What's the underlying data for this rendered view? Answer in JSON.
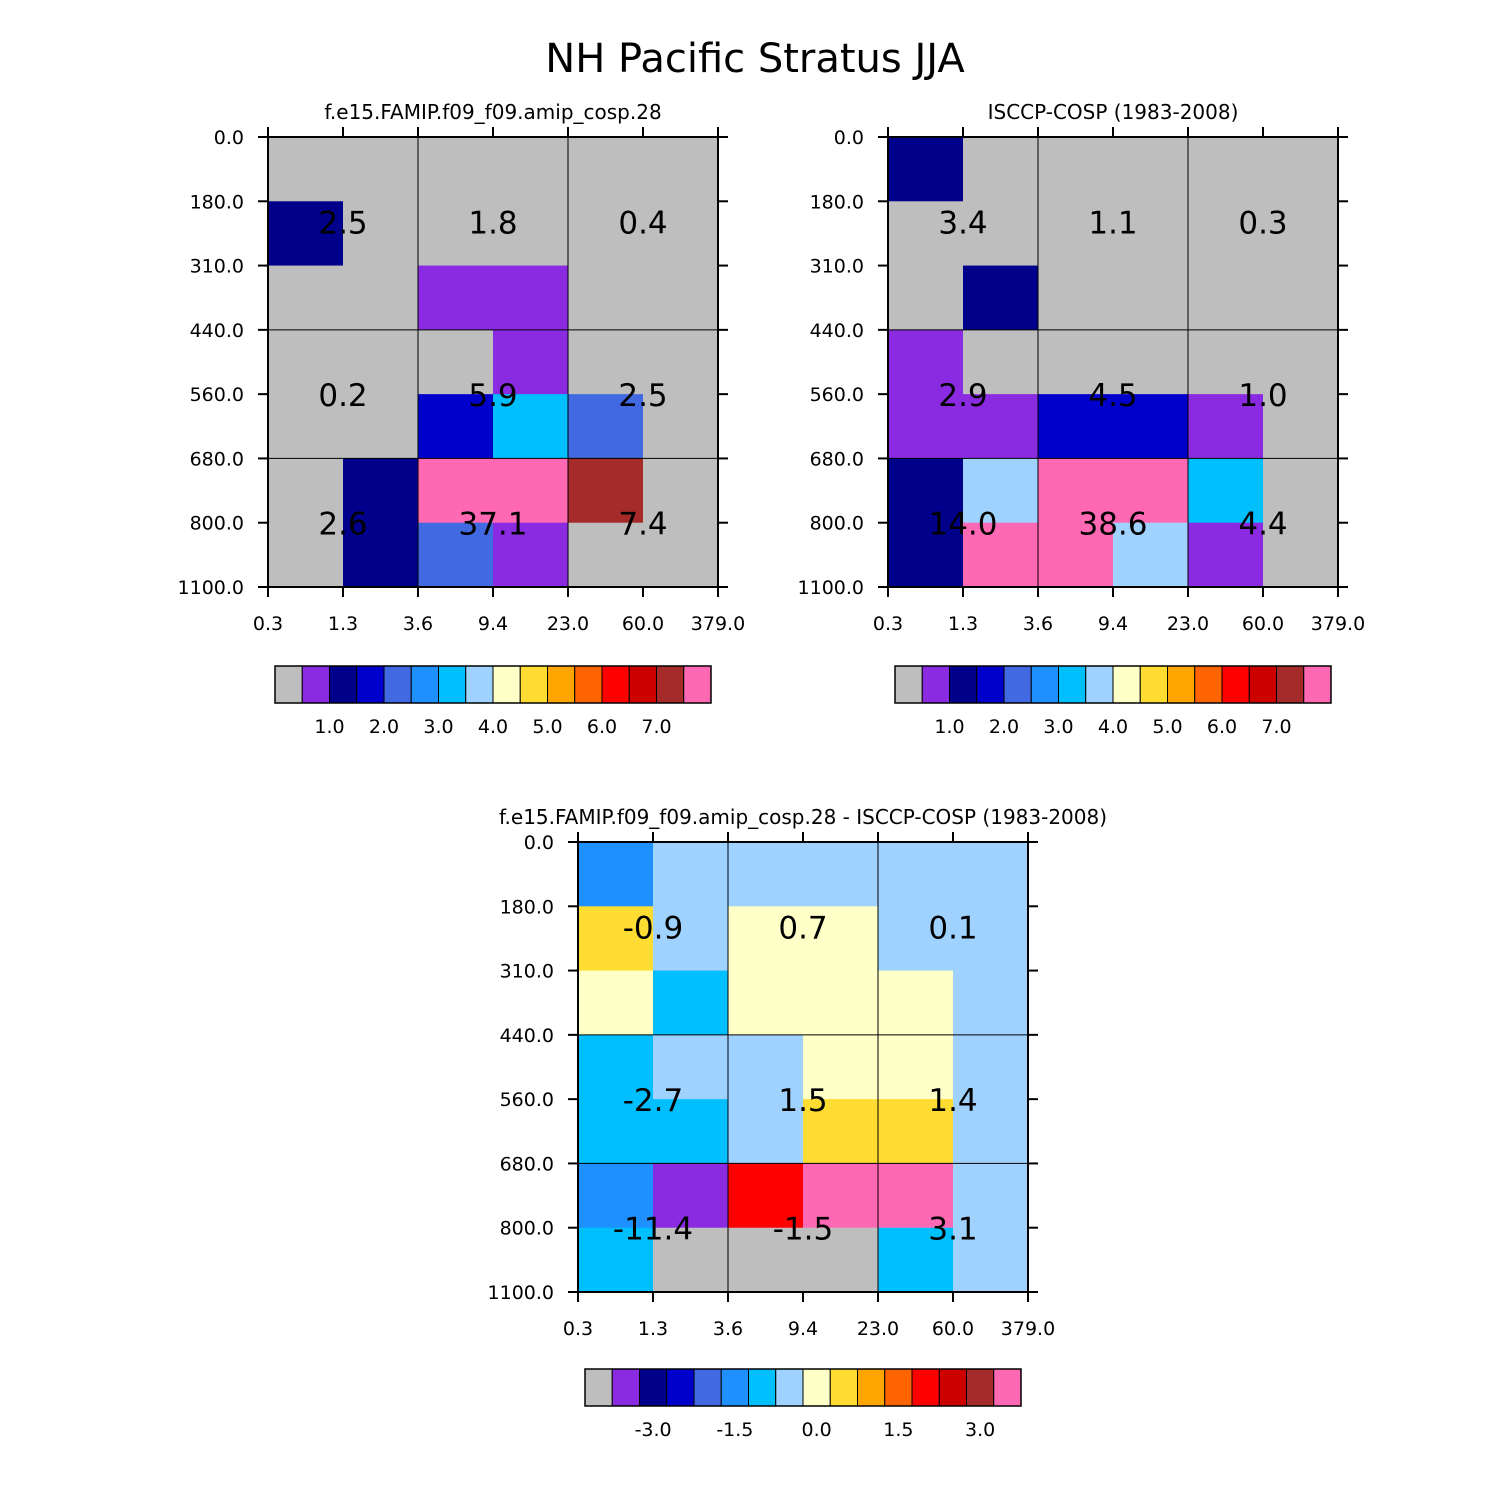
{
  "figure": {
    "title": "NH Pacific Stratus JJA"
  },
  "chart_data": [
    {
      "type": "heatmap",
      "title": "f.e15.FAMIP.f09_f09.amip_cosp.28",
      "x_ticks": [
        "0.3",
        "1.3",
        "3.6",
        "9.4",
        "23.0",
        "60.0",
        "379.0"
      ],
      "y_ticks": [
        "0.0",
        "180.0",
        "310.0",
        "440.0",
        "560.0",
        "680.0",
        "800.0",
        "1100.0"
      ],
      "cell_classes": [
        [
          0,
          0,
          0,
          0,
          0,
          0
        ],
        [
          2,
          0,
          0,
          0,
          0,
          0
        ],
        [
          0,
          0,
          1,
          1,
          0,
          0
        ],
        [
          0,
          0,
          0,
          1,
          0,
          0
        ],
        [
          0,
          0,
          3,
          6,
          4,
          0
        ],
        [
          0,
          2,
          15,
          15,
          14,
          0
        ],
        [
          0,
          2,
          4,
          1,
          0,
          0
        ]
      ],
      "box_values": [
        [
          "2.5",
          "1.8",
          "0.4"
        ],
        [
          "0.2",
          "5.9",
          "2.5"
        ],
        [
          "2.6",
          "37.1",
          "7.4"
        ]
      ],
      "colorbar": {
        "labels": [
          "1.0",
          "2.0",
          "3.0",
          "4.0",
          "5.0",
          "6.0",
          "7.0"
        ],
        "label_after_box": [
          1,
          3,
          5,
          7,
          9,
          11,
          13
        ]
      }
    },
    {
      "type": "heatmap",
      "title": "ISCCP-COSP (1983-2008)",
      "x_ticks": [
        "0.3",
        "1.3",
        "3.6",
        "9.4",
        "23.0",
        "60.0",
        "379.0"
      ],
      "y_ticks": [
        "0.0",
        "180.0",
        "310.0",
        "440.0",
        "560.0",
        "680.0",
        "800.0",
        "1100.0"
      ],
      "cell_classes": [
        [
          2,
          0,
          0,
          0,
          0,
          0
        ],
        [
          0,
          0,
          0,
          0,
          0,
          0
        ],
        [
          0,
          2,
          0,
          0,
          0,
          0
        ],
        [
          1,
          0,
          0,
          0,
          0,
          0
        ],
        [
          1,
          1,
          3,
          3,
          1,
          0
        ],
        [
          2,
          7,
          15,
          15,
          6,
          0
        ],
        [
          2,
          15,
          15,
          7,
          1,
          0
        ]
      ],
      "box_values": [
        [
          "3.4",
          "1.1",
          "0.3"
        ],
        [
          "2.9",
          "4.5",
          "1.0"
        ],
        [
          "14.0",
          "38.6",
          "4.4"
        ]
      ],
      "colorbar": {
        "labels": [
          "1.0",
          "2.0",
          "3.0",
          "4.0",
          "5.0",
          "6.0",
          "7.0"
        ],
        "label_after_box": [
          1,
          3,
          5,
          7,
          9,
          11,
          13
        ]
      }
    },
    {
      "type": "heatmap",
      "title": "f.e15.FAMIP.f09_f09.amip_cosp.28 - ISCCP-COSP (1983-2008)",
      "x_ticks": [
        "0.3",
        "1.3",
        "3.6",
        "9.4",
        "23.0",
        "60.0",
        "379.0"
      ],
      "y_ticks": [
        "0.0",
        "180.0",
        "310.0",
        "440.0",
        "560.0",
        "680.0",
        "800.0",
        "1100.0"
      ],
      "cell_classes": [
        [
          5,
          7,
          7,
          7,
          7,
          7
        ],
        [
          9,
          7,
          8,
          8,
          7,
          7
        ],
        [
          8,
          6,
          8,
          8,
          8,
          7
        ],
        [
          6,
          7,
          7,
          8,
          8,
          7
        ],
        [
          6,
          6,
          7,
          9,
          9,
          7
        ],
        [
          5,
          1,
          12,
          15,
          15,
          7
        ],
        [
          6,
          0,
          0,
          0,
          6,
          7
        ]
      ],
      "box_values": [
        [
          "-0.9",
          "0.7",
          "0.1"
        ],
        [
          "-2.7",
          "1.5",
          "1.4"
        ],
        [
          "-11.4",
          "-1.5",
          "3.1"
        ]
      ],
      "colorbar": {
        "labels": [
          "-3.0",
          "-1.5",
          "0.0",
          "1.5",
          "3.0"
        ],
        "label_after_box": [
          1.5,
          4.5,
          7.5,
          10.5,
          13.5
        ]
      }
    }
  ],
  "palette": [
    "#bebebe",
    "#8a2be2",
    "#00008b",
    "#0000cd",
    "#4169e1",
    "#1e90ff",
    "#00bfff",
    "#a0d2ff",
    "#ffffc8",
    "#ffdc32",
    "#ffa500",
    "#ff6400",
    "#ff0000",
    "#cd0000",
    "#a52a2a",
    "#ff69b4"
  ]
}
